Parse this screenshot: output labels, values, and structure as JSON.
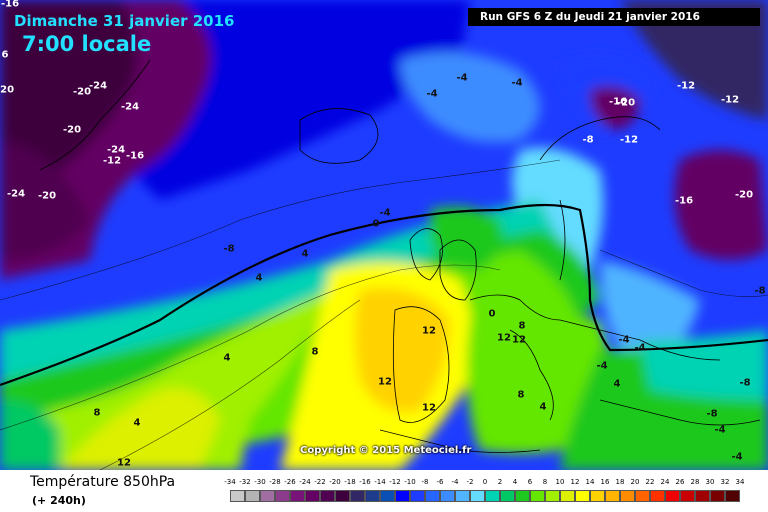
{
  "header": {
    "date": "Dimanche 31 janvier 2016",
    "time": "7:00 locale",
    "run": "Run GFS 6 Z du Jeudi 21 janvier 2016"
  },
  "copyright": "Copyright © 2015 Meteociel.fr",
  "footer": {
    "title": "Température 850hPa",
    "subtitle": "(+ 240h)"
  },
  "legend": {
    "ticks": [
      "-34",
      "-32",
      "-30",
      "-28",
      "-26",
      "-24",
      "-22",
      "-20",
      "-18",
      "-16",
      "-14",
      "-12",
      "-10",
      "-8",
      "-6",
      "-4",
      "-2",
      "0",
      "2",
      "4",
      "6",
      "8",
      "10",
      "12",
      "14",
      "16",
      "18",
      "20",
      "22",
      "24",
      "26",
      "28",
      "30",
      "32",
      "34"
    ],
    "colors": [
      "#c8c8c8",
      "#b4b4b4",
      "#a06ea0",
      "#8c3c8c",
      "#781478",
      "#640064",
      "#500050",
      "#3c003c",
      "#322864",
      "#1e3c8c",
      "#0a50b4",
      "#0000ff",
      "#1e3cff",
      "#2864ff",
      "#3c8cff",
      "#50b4ff",
      "#64dcff",
      "#00d2b4",
      "#00c864",
      "#1ec81e",
      "#64e600",
      "#a0f000",
      "#dcf000",
      "#ffff00",
      "#ffd200",
      "#ffb400",
      "#ff8c00",
      "#ff6400",
      "#ff3200",
      "#f00000",
      "#c80000",
      "#a00000",
      "#780000",
      "#500000"
    ]
  },
  "isotherm_labels": [
    {
      "text": "-16"
    },
    {
      "text": "6"
    },
    {
      "text": "-20"
    },
    {
      "text": "-20"
    },
    {
      "text": "-24"
    },
    {
      "text": "-24"
    },
    {
      "text": "-20"
    },
    {
      "text": "-24"
    },
    {
      "text": "-16"
    },
    {
      "text": "-12"
    },
    {
      "text": "-24"
    },
    {
      "text": "-20"
    },
    {
      "text": "-4"
    },
    {
      "text": "-4"
    },
    {
      "text": "-4"
    },
    {
      "text": "-16"
    },
    {
      "text": "-20"
    },
    {
      "text": "-12"
    },
    {
      "text": "-12"
    },
    {
      "text": "-8"
    },
    {
      "text": "-12"
    },
    {
      "text": "-16"
    },
    {
      "text": "-20"
    },
    {
      "text": "-8"
    },
    {
      "text": "-4"
    },
    {
      "text": "0"
    },
    {
      "text": "-8"
    },
    {
      "text": "4"
    },
    {
      "text": "4"
    },
    {
      "text": "8"
    },
    {
      "text": "4"
    },
    {
      "text": "12"
    },
    {
      "text": "0"
    },
    {
      "text": "8"
    },
    {
      "text": "12"
    },
    {
      "text": "12"
    },
    {
      "text": "12"
    },
    {
      "text": "8"
    },
    {
      "text": "4"
    },
    {
      "text": "-4"
    },
    {
      "text": "-4"
    },
    {
      "text": "-4"
    },
    {
      "text": "-8"
    },
    {
      "text": "4"
    },
    {
      "text": "8"
    },
    {
      "text": "12"
    },
    {
      "text": "12"
    },
    {
      "text": "4"
    },
    {
      "text": "-4"
    },
    {
      "text": "-4"
    },
    {
      "text": "-8"
    }
  ]
}
